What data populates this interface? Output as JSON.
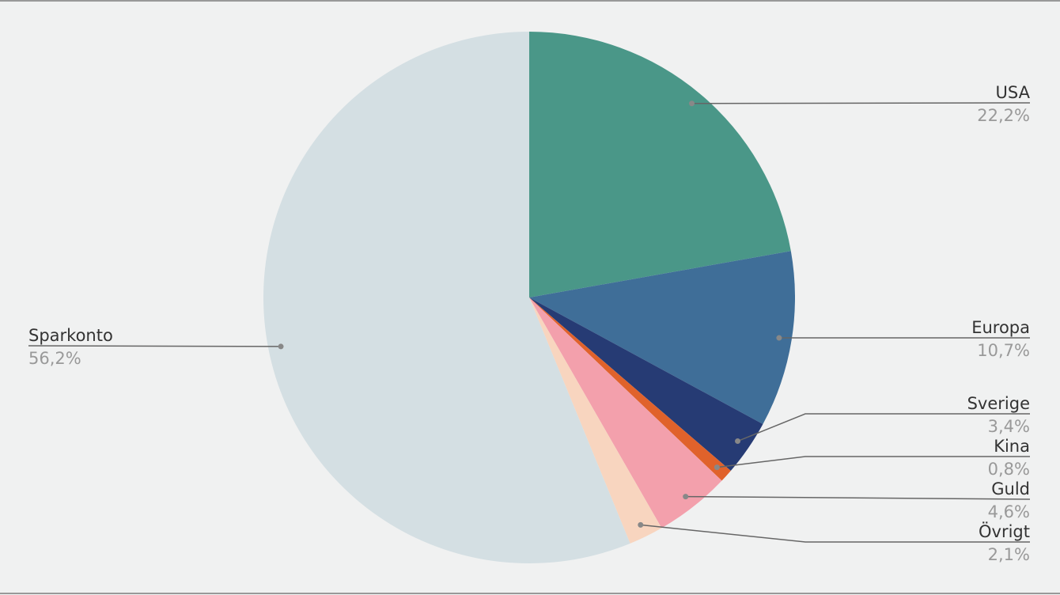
{
  "chart_data": {
    "type": "pie",
    "categories": [
      "USA",
      "Europa",
      "Sverige",
      "Kina",
      "Guld",
      "Övrigt",
      "Sparkonto"
    ],
    "values": [
      22.2,
      10.7,
      3.4,
      0.8,
      4.6,
      2.1,
      56.2
    ],
    "value_labels": [
      "22,2%",
      "10,7%",
      "3,4%",
      "0,8%",
      "4,6%",
      "2,1%",
      "56,2%"
    ],
    "colors": [
      "#4a9788",
      "#3f6e98",
      "#263b74",
      "#e0622b",
      "#f3a0ac",
      "#f8d5bf",
      "#d4dfe3"
    ]
  }
}
